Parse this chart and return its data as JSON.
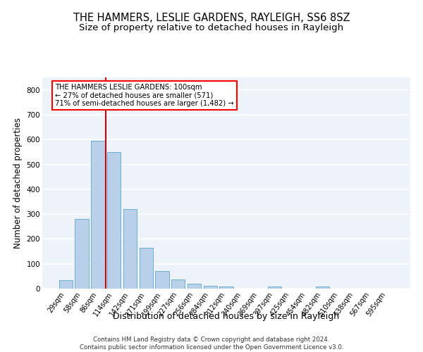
{
  "title": "THE HAMMERS, LESLIE GARDENS, RAYLEIGH, SS6 8SZ",
  "subtitle": "Size of property relative to detached houses in Rayleigh",
  "xlabel": "Distribution of detached houses by size in Rayleigh",
  "ylabel": "Number of detached properties",
  "bar_color": "#b8d0e8",
  "bar_edge_color": "#6baed6",
  "categories": [
    "29sqm",
    "58sqm",
    "86sqm",
    "114sqm",
    "142sqm",
    "171sqm",
    "199sqm",
    "227sqm",
    "256sqm",
    "284sqm",
    "312sqm",
    "340sqm",
    "369sqm",
    "397sqm",
    "425sqm",
    "454sqm",
    "482sqm",
    "510sqm",
    "538sqm",
    "567sqm",
    "595sqm"
  ],
  "values": [
    35,
    280,
    595,
    550,
    320,
    165,
    70,
    37,
    20,
    10,
    8,
    0,
    0,
    8,
    0,
    0,
    8,
    0,
    0,
    0,
    0
  ],
  "vline_color": "#cc0000",
  "ylim": [
    0,
    850
  ],
  "yticks": [
    0,
    100,
    200,
    300,
    400,
    500,
    600,
    700,
    800
  ],
  "annotation_text": "THE HAMMERS LESLIE GARDENS: 100sqm\n← 27% of detached houses are smaller (571)\n71% of semi-detached houses are larger (1,482) →",
  "footnote": "Contains HM Land Registry data © Crown copyright and database right 2024.\nContains public sector information licensed under the Open Government Licence v3.0.",
  "background_color": "#eef2f9",
  "grid_color": "#ffffff",
  "title_fontsize": 10.5,
  "subtitle_fontsize": 9.5,
  "tick_fontsize": 7,
  "ylabel_fontsize": 8.5,
  "xlabel_fontsize": 9,
  "footnote_fontsize": 6.2
}
